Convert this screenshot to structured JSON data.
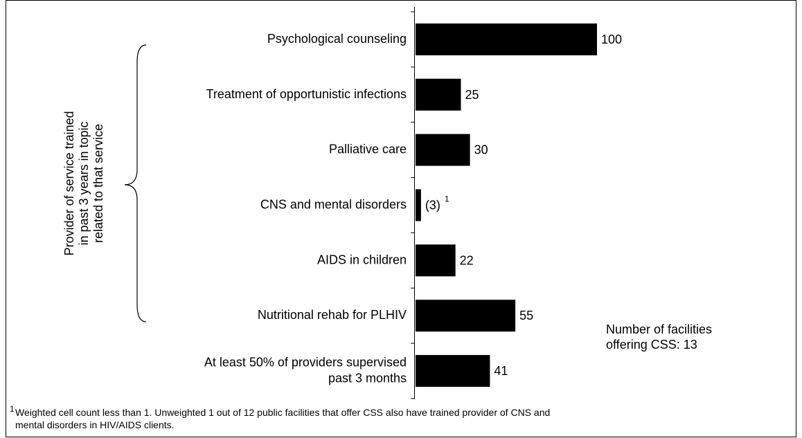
{
  "chart_data": {
    "type": "bar",
    "orientation": "horizontal",
    "categories": [
      "Psychological counseling",
      "Treatment of opportunistic infections",
      "Palliative care",
      "CNS and mental disorders",
      "AIDS in children",
      "Nutritional rehab for PLHIV",
      "At least 50% of providers supervised\npast 3 months"
    ],
    "values": [
      100,
      25,
      30,
      3,
      22,
      55,
      41
    ],
    "value_labels": [
      "100",
      "25",
      "30",
      "(3)",
      "22",
      "55",
      "41"
    ],
    "value_label_superscripts": [
      null,
      null,
      null,
      "1",
      null,
      null,
      null
    ],
    "color": "#000000",
    "xlim": [
      0,
      100
    ],
    "group_label": "Provider of service trained\nin past 3 years in topic\nrelated to that service",
    "note": "Number of facilities\noffering CSS: 13",
    "footnote_marker": "1",
    "footnote": "Weighted cell count less than 1.  Unweighted 1 out of 12 public facilities that offer CSS also have trained provider of CNS and\nmental disorders in HIV/AIDS clients."
  }
}
